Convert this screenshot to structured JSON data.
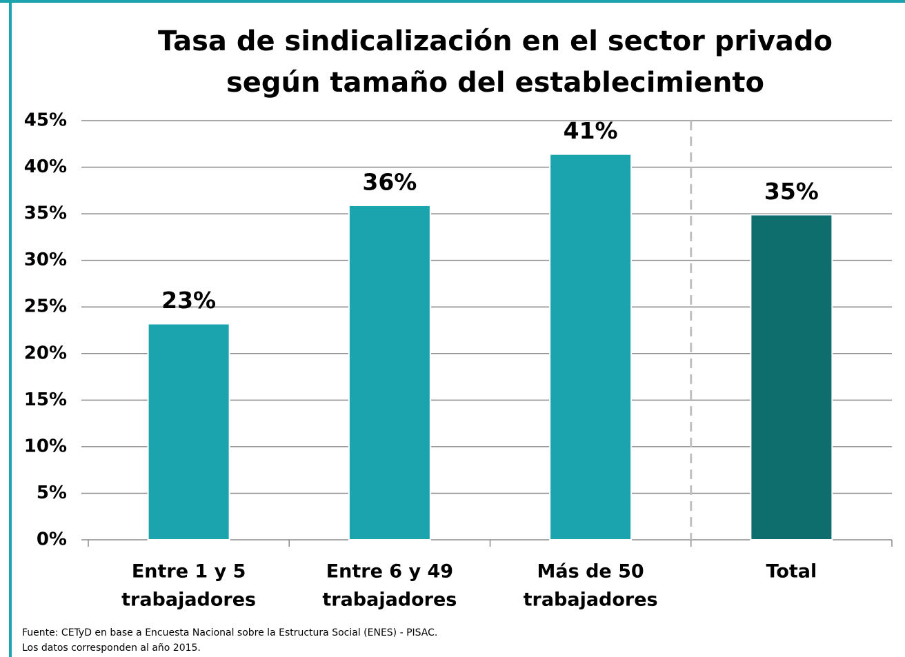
{
  "chart_data": {
    "type": "bar",
    "title": [
      "Tasa de sindicalización en el sector privado",
      "según tamaño del establecimiento"
    ],
    "categories": [
      [
        "Entre 1 y 5",
        "trabajadores"
      ],
      [
        "Entre 6 y 49",
        "trabajadores"
      ],
      [
        "Más de 50",
        "trabajadores"
      ],
      [
        "Total"
      ]
    ],
    "values": [
      23.2,
      35.9,
      41.4,
      34.9
    ],
    "value_labels": [
      "23%",
      "36%",
      "41%",
      "35%"
    ],
    "colors": [
      "#1ba3ae",
      "#1ba3ae",
      "#1ba3ae",
      "#0e6e6e"
    ],
    "ylim": [
      0,
      45
    ],
    "yticks": [
      {
        "value": 0,
        "label": "0%"
      },
      {
        "value": 5,
        "label": "5%"
      },
      {
        "value": 10,
        "label": "10%"
      },
      {
        "value": 15,
        "label": "15%"
      },
      {
        "value": 20,
        "label": "20%"
      },
      {
        "value": 25,
        "label": "25%"
      },
      {
        "value": 30,
        "label": "30%"
      },
      {
        "value": 35,
        "label": "35%"
      },
      {
        "value": 40,
        "label": "40%"
      },
      {
        "value": 45,
        "label": "45%"
      }
    ],
    "grid": true,
    "source": [
      "Fuente: CETyD en base a Encuesta Nacional sobre la Estructura Social (ENES) - PISAC.",
      "Los datos corresponden al año 2015."
    ]
  }
}
